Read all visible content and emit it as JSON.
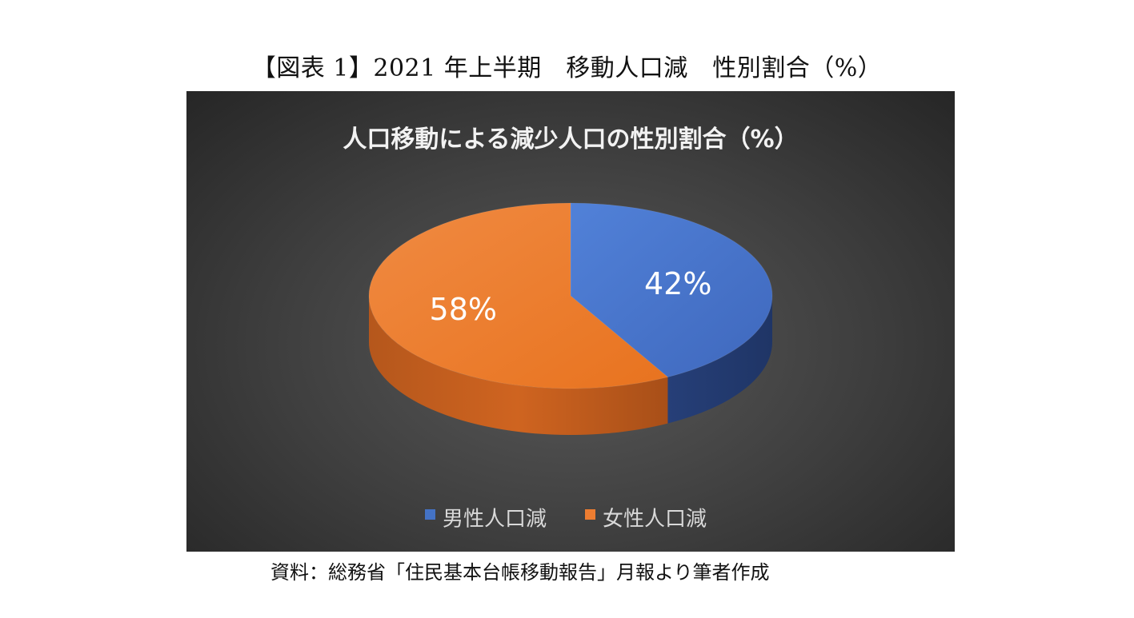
{
  "figure": {
    "title": "【図表 1】2021 年上半期　移動人口減　性別割合（%）",
    "source": "資料：総務省「住民基本台帳移動報告」月報より筆者作成"
  },
  "colors": {
    "background": "#3a3a3a",
    "male": "#4472c4",
    "female": "#ed7d31"
  },
  "chart_data": {
    "type": "pie",
    "style": "3d",
    "title": "人口移動による減少人口の性別割合（%）",
    "legend_position": "bottom",
    "series": [
      {
        "name": "男性人口減",
        "value": 42,
        "label": "42%",
        "color": "#4472c4"
      },
      {
        "name": "女性人口減",
        "value": 58,
        "label": "58%",
        "color": "#ed7d31"
      }
    ]
  }
}
